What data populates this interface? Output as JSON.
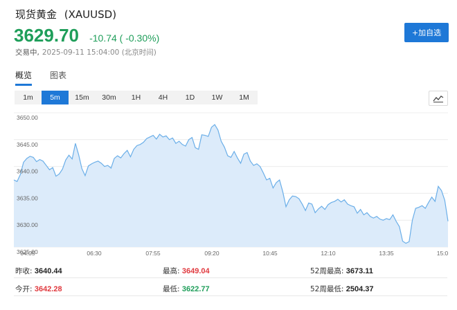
{
  "header": {
    "title": "现货黄金",
    "symbol": "(XAUUSD)",
    "price": "3629.70",
    "change": "-10.74",
    "change_pct": "( -0.30%)",
    "status": "交易中,",
    "timestamp": "2025-09-11 15:04:00 (北京时间)",
    "add_button": "+加自选"
  },
  "tabs": [
    {
      "label": "概览",
      "active": true
    },
    {
      "label": "图表",
      "active": false
    }
  ],
  "ranges": [
    {
      "label": "1m",
      "active": false
    },
    {
      "label": "5m",
      "active": true
    },
    {
      "label": "15m",
      "active": false
    },
    {
      "label": "30m",
      "active": false
    },
    {
      "label": "1H",
      "active": false
    },
    {
      "label": "4H",
      "active": false
    },
    {
      "label": "1D",
      "active": false
    },
    {
      "label": "1W",
      "active": false
    },
    {
      "label": "1M",
      "active": false
    }
  ],
  "chart_toggle_icon": "line-chart-icon",
  "colors": {
    "accent": "#1e78d7",
    "up": "#e0393e",
    "down": "#1f9e5a",
    "line": "#6aaee8",
    "fill": "#dcebfa"
  },
  "chart_data": {
    "type": "area",
    "y_ticks": [
      "3650.00",
      "3645.00",
      "3640.00",
      "3635.00",
      "3630.00",
      "3625.00"
    ],
    "ylim": [
      3625,
      3650
    ],
    "x_ticks": [
      "04:05",
      "06:30",
      "07:55",
      "09:20",
      "10:45",
      "12:10",
      "13:35",
      "15:0"
    ],
    "grid": true,
    "series": [
      {
        "values": [
          3637.5,
          3637.2,
          3638.5,
          3640.8,
          3641.5,
          3641.9,
          3641.7,
          3640.9,
          3641.3,
          3641.0,
          3640.2,
          3639.4,
          3639.8,
          3638.2,
          3638.6,
          3639.5,
          3641.2,
          3642.1,
          3641.4,
          3644.3,
          3642.2,
          3639.6,
          3638.3,
          3640.1,
          3640.5,
          3640.8,
          3641.0,
          3640.6,
          3640.0,
          3640.2,
          3639.7,
          3641.5,
          3642.0,
          3641.6,
          3642.4,
          3643.0,
          3641.8,
          3643.2,
          3643.9,
          3644.1,
          3644.5,
          3645.2,
          3645.5,
          3645.8,
          3645.1,
          3646.0,
          3645.5,
          3645.7,
          3645.0,
          3645.3,
          3644.3,
          3644.7,
          3644.1,
          3643.8,
          3645.0,
          3645.4,
          3643.5,
          3643.2,
          3645.9,
          3645.8,
          3645.6,
          3647.3,
          3647.8,
          3646.8,
          3644.7,
          3643.6,
          3642.0,
          3641.7,
          3642.8,
          3641.6,
          3640.6,
          3642.3,
          3642.6,
          3641.0,
          3640.2,
          3640.5,
          3640.0,
          3638.8,
          3637.5,
          3637.8,
          3636.0,
          3637.0,
          3637.5,
          3635.3,
          3632.5,
          3633.8,
          3634.5,
          3634.4,
          3634.0,
          3633.0,
          3631.8,
          3633.2,
          3633.0,
          3631.4,
          3632.1,
          3632.6,
          3632.0,
          3632.9,
          3633.3,
          3633.5,
          3633.9,
          3633.4,
          3633.8,
          3633.0,
          3632.7,
          3632.5,
          3631.3,
          3632.0,
          3631.0,
          3631.4,
          3630.7,
          3630.4,
          3630.7,
          3630.2,
          3630.0,
          3630.3,
          3630.1,
          3631.0,
          3629.8,
          3628.8,
          3626.1,
          3625.7,
          3626.0,
          3630.0,
          3632.2,
          3632.4,
          3632.7,
          3632.2,
          3633.3,
          3634.3,
          3633.5,
          3636.3,
          3635.5,
          3633.7,
          3629.8
        ]
      }
    ]
  },
  "stats": [
    {
      "label": "昨收:",
      "value": "3640.44",
      "color": "dark"
    },
    {
      "label": "最高:",
      "value": "3649.04",
      "color": "red"
    },
    {
      "label": "52周最高:",
      "value": "3673.11",
      "color": "dark"
    },
    {
      "label": "今开:",
      "value": "3642.28",
      "color": "red"
    },
    {
      "label": "最低:",
      "value": "3622.77",
      "color": "green"
    },
    {
      "label": "52周最低:",
      "value": "2504.37",
      "color": "dark"
    }
  ]
}
